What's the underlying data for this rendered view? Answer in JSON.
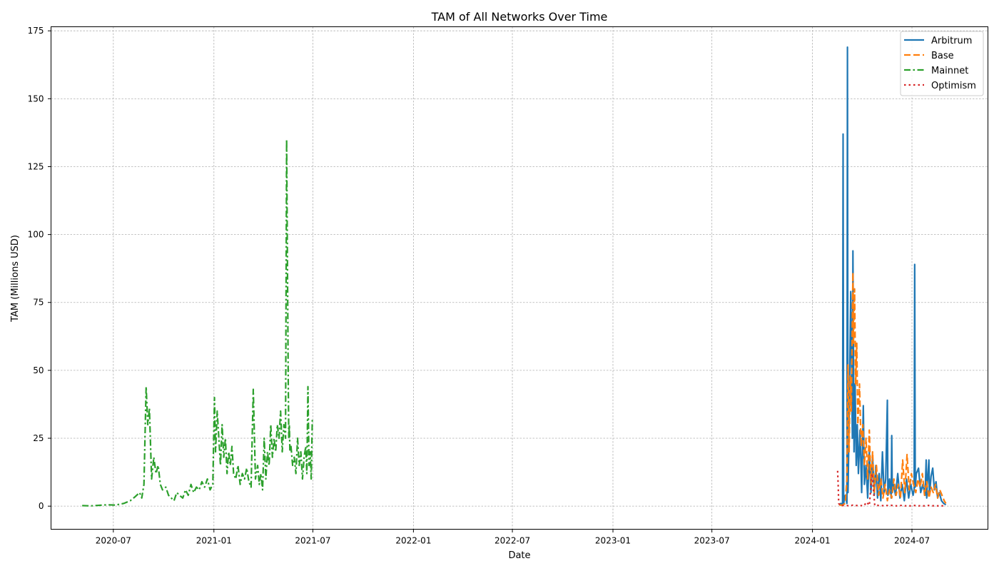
{
  "chart_data": {
    "type": "line",
    "title": "TAM of All Networks Over Time",
    "xlabel": "Date",
    "ylabel": "TAM (Millions USD)",
    "x_ticks": [
      "2020-07",
      "2021-01",
      "2021-07",
      "2022-01",
      "2022-07",
      "2023-01",
      "2023-07",
      "2024-01",
      "2024-07"
    ],
    "y_ticks": [
      0,
      25,
      50,
      75,
      100,
      125,
      150,
      175
    ],
    "xlim": [
      "2020-03-09",
      "2024-11-17"
    ],
    "ylim": [
      -8.5,
      176.5
    ],
    "grid": true,
    "legend_position": "top-right",
    "colors": {
      "Arbitrum": "#1f77b4",
      "Base": "#ff7f0e",
      "Mainnet": "#2ca02c",
      "Optimism": "#d62728"
    },
    "series": [
      {
        "name": "Arbitrum",
        "line_style": "solid",
        "x": [
          "2024-02-19",
          "2024-02-22",
          "2024-02-25",
          "2024-02-26",
          "2024-02-27",
          "2024-03-01",
          "2024-03-04",
          "2024-03-05",
          "2024-03-06",
          "2024-03-08",
          "2024-03-11",
          "2024-03-14",
          "2024-03-15",
          "2024-03-17",
          "2024-03-19",
          "2024-03-21",
          "2024-03-23",
          "2024-03-25",
          "2024-03-28",
          "2024-03-31",
          "2024-04-03",
          "2024-04-05",
          "2024-04-08",
          "2024-04-11",
          "2024-04-14",
          "2024-04-17",
          "2024-04-20",
          "2024-04-23",
          "2024-04-26",
          "2024-04-29",
          "2024-05-02",
          "2024-05-05",
          "2024-05-08",
          "2024-05-11",
          "2024-05-14",
          "2024-05-17",
          "2024-05-18",
          "2024-05-19",
          "2024-05-21",
          "2024-05-24",
          "2024-05-25",
          "2024-05-26",
          "2024-05-28",
          "2024-06-01",
          "2024-06-05",
          "2024-06-09",
          "2024-06-13",
          "2024-06-17",
          "2024-06-21",
          "2024-06-25",
          "2024-06-29",
          "2024-07-03",
          "2024-07-05",
          "2024-07-06",
          "2024-07-07",
          "2024-07-09",
          "2024-07-13",
          "2024-07-17",
          "2024-07-21",
          "2024-07-25",
          "2024-07-27",
          "2024-07-28",
          "2024-07-29",
          "2024-08-01",
          "2024-08-02",
          "2024-08-05",
          "2024-08-08",
          "2024-08-11",
          "2024-08-14",
          "2024-08-17",
          "2024-08-20",
          "2024-08-24",
          "2024-08-28",
          "2024-09-01"
        ],
        "values": [
          0.5,
          1.0,
          0.5,
          137,
          1.0,
          4.0,
          1.0,
          169,
          5.0,
          30,
          79,
          25,
          94,
          20,
          45,
          15,
          30,
          12,
          28,
          5,
          37,
          8,
          15,
          3,
          20,
          5,
          18,
          4,
          15,
          3,
          12,
          2,
          20,
          5,
          10,
          39,
          4,
          6,
          10,
          3,
          26,
          5,
          8,
          4,
          12,
          3,
          8,
          2,
          10,
          3,
          8,
          4,
          6,
          89,
          7,
          12,
          14,
          5,
          8,
          4,
          17,
          3,
          8,
          17,
          4,
          11,
          14,
          6,
          9,
          3,
          5,
          2,
          1,
          0.5
        ]
      },
      {
        "name": "Base",
        "line_style": "dashed",
        "x": [
          "2024-02-19",
          "2024-02-24",
          "2024-03-01",
          "2024-03-04",
          "2024-03-06",
          "2024-03-08",
          "2024-03-10",
          "2024-03-12",
          "2024-03-14",
          "2024-03-15",
          "2024-03-16",
          "2024-03-18",
          "2024-03-20",
          "2024-03-22",
          "2024-03-24",
          "2024-03-27",
          "2024-03-30",
          "2024-04-02",
          "2024-04-05",
          "2024-04-08",
          "2024-04-11",
          "2024-04-14",
          "2024-04-17",
          "2024-04-20",
          "2024-04-23",
          "2024-04-27",
          "2024-05-01",
          "2024-05-05",
          "2024-05-09",
          "2024-05-13",
          "2024-05-17",
          "2024-05-21",
          "2024-05-25",
          "2024-05-29",
          "2024-06-02",
          "2024-06-06",
          "2024-06-10",
          "2024-06-14",
          "2024-06-18",
          "2024-06-22",
          "2024-06-26",
          "2024-06-30",
          "2024-07-04",
          "2024-07-08",
          "2024-07-12",
          "2024-07-16",
          "2024-07-20",
          "2024-07-24",
          "2024-07-28",
          "2024-08-01",
          "2024-08-05",
          "2024-08-09",
          "2024-08-13",
          "2024-08-17",
          "2024-08-21",
          "2024-08-25",
          "2024-08-29",
          "2024-09-01"
        ],
        "values": [
          0.5,
          0.3,
          1.0,
          10,
          52,
          20,
          48,
          35,
          70,
          86,
          60,
          80,
          45,
          60,
          30,
          45,
          22,
          30,
          15,
          25,
          10,
          28,
          8,
          20,
          5,
          15,
          4,
          10,
          3,
          8,
          2,
          6,
          3,
          10,
          4,
          8,
          3,
          17,
          5,
          19,
          6,
          12,
          8,
          5,
          10,
          7,
          12,
          4,
          9,
          3,
          7,
          5,
          8,
          3,
          6,
          4,
          2,
          1
        ]
      },
      {
        "name": "Mainnet",
        "line_style": "dashdot",
        "x": [
          "2020-05-05",
          "2020-05-20",
          "2020-06-05",
          "2020-06-20",
          "2020-07-05",
          "2020-07-20",
          "2020-08-01",
          "2020-08-10",
          "2020-08-18",
          "2020-08-22",
          "2020-08-26",
          "2020-08-30",
          "2020-09-02",
          "2020-09-05",
          "2020-09-09",
          "2020-09-13",
          "2020-09-17",
          "2020-09-21",
          "2020-09-25",
          "2020-09-29",
          "2020-10-05",
          "2020-10-10",
          "2020-10-15",
          "2020-10-20",
          "2020-10-25",
          "2020-10-30",
          "2020-11-05",
          "2020-11-10",
          "2020-11-15",
          "2020-11-20",
          "2020-11-25",
          "2020-11-30",
          "2020-12-05",
          "2020-12-10",
          "2020-12-15",
          "2020-12-20",
          "2020-12-25",
          "2020-12-30",
          "2021-01-02",
          "2021-01-04",
          "2021-01-07",
          "2021-01-10",
          "2021-01-13",
          "2021-01-16",
          "2021-01-19",
          "2021-01-22",
          "2021-01-25",
          "2021-01-28",
          "2021-01-31",
          "2021-02-03",
          "2021-02-06",
          "2021-02-10",
          "2021-02-14",
          "2021-02-18",
          "2021-02-22",
          "2021-02-26",
          "2021-03-02",
          "2021-03-06",
          "2021-03-10",
          "2021-03-14",
          "2021-03-18",
          "2021-03-22",
          "2021-03-25",
          "2021-03-28",
          "2021-03-31",
          "2021-04-03",
          "2021-04-06",
          "2021-04-09",
          "2021-04-12",
          "2021-04-15",
          "2021-04-18",
          "2021-04-21",
          "2021-04-24",
          "2021-04-27",
          "2021-04-30",
          "2021-05-03",
          "2021-05-06",
          "2021-05-09",
          "2021-05-12",
          "2021-05-14",
          "2021-05-16",
          "2021-05-17",
          "2021-05-18",
          "2021-05-19",
          "2021-05-20",
          "2021-05-22",
          "2021-05-25",
          "2021-05-28",
          "2021-05-31",
          "2021-06-03",
          "2021-06-06",
          "2021-06-09",
          "2021-06-12",
          "2021-06-15",
          "2021-06-18",
          "2021-06-20",
          "2021-06-22",
          "2021-06-24",
          "2021-06-26",
          "2021-06-28",
          "2021-06-30"
        ],
        "values": [
          0.2,
          0.1,
          0.3,
          0.5,
          0.4,
          1.0,
          2.0,
          3.5,
          5.0,
          3.0,
          8.0,
          44,
          30,
          36,
          10,
          18,
          12,
          15,
          8,
          6,
          7,
          4,
          3,
          2,
          5,
          4,
          3,
          6,
          4,
          8,
          5,
          7,
          6,
          9,
          7,
          10,
          6,
          8,
          40,
          20,
          35,
          25,
          15,
          30,
          18,
          25,
          12,
          20,
          15,
          22,
          12,
          10,
          15,
          8,
          12,
          10,
          14,
          9,
          7,
          43,
          10,
          15,
          8,
          12,
          6,
          25,
          10,
          20,
          15,
          30,
          18,
          25,
          20,
          30,
          25,
          35,
          20,
          30,
          25,
          135,
          75,
          45,
          25,
          30,
          20,
          22,
          15,
          18,
          12,
          25,
          15,
          20,
          10,
          18,
          22,
          12,
          44,
          15,
          20,
          10,
          32
        ]
      },
      {
        "name": "Optimism",
        "line_style": "dotted",
        "x": [
          "2024-02-16",
          "2024-02-17",
          "2024-02-18",
          "2024-02-20",
          "2024-02-22",
          "2024-02-25",
          "2024-03-01",
          "2024-03-05",
          "2024-03-10",
          "2024-03-15",
          "2024-03-20",
          "2024-03-25",
          "2024-03-30",
          "2024-04-04",
          "2024-04-09",
          "2024-04-14",
          "2024-04-19",
          "2024-04-24",
          "2024-04-29",
          "2024-05-04",
          "2024-05-09",
          "2024-05-14",
          "2024-05-19",
          "2024-05-24",
          "2024-05-29",
          "2024-06-03",
          "2024-06-08",
          "2024-06-13",
          "2024-06-18",
          "2024-06-23",
          "2024-06-28",
          "2024-07-03",
          "2024-07-08",
          "2024-07-13",
          "2024-07-18",
          "2024-07-23",
          "2024-07-28",
          "2024-08-02",
          "2024-08-07",
          "2024-08-12",
          "2024-08-17",
          "2024-08-22",
          "2024-08-27",
          "2024-09-01"
        ],
        "values": [
          13,
          8,
          1,
          0.5,
          0.1,
          0.2,
          0.3,
          0.2,
          0.1,
          0.4,
          0.2,
          0.3,
          0.2,
          0.1,
          1.5,
          0.3,
          12,
          0.2,
          0.3,
          0.1,
          0.2,
          0.4,
          0.1,
          0.3,
          0.2,
          0.1,
          0.2,
          0.3,
          0.1,
          0.2,
          0.1,
          0.3,
          0.2,
          0.1,
          0.2,
          0.1,
          0.3,
          0.2,
          0.1,
          0.2,
          0.1,
          0.2,
          0.1,
          0.1
        ]
      }
    ]
  }
}
